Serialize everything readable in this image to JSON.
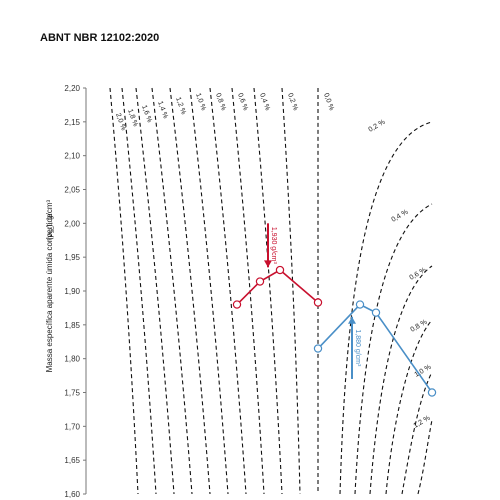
{
  "document": {
    "title": "ABNT NBR 12102:2020"
  },
  "chart_data": {
    "type": "line",
    "title": "",
    "ylabel": "Massa específica aparente úmida convertida   (ρ_sc), g/cm³",
    "ylabel_main": "Massa específica aparente úmida convertida",
    "ylabel_symbol": "(ρ",
    "ylabel_sub": "sc",
    "ylabel_unit": "), g/cm³",
    "ylim": [
      1.6,
      2.2
    ],
    "yticks": [
      "1,60",
      "1,65",
      "1,70",
      "1,75",
      "1,80",
      "1,85",
      "1,90",
      "1,95",
      "2,00",
      "2,05",
      "2,10",
      "2,15",
      "2,20"
    ],
    "grid": false,
    "left_curve_labels": [
      "0,0 %",
      "0,2 %",
      "0,4 %",
      "0,6 %",
      "0,8 %",
      "1,0 %",
      "1,2 %",
      "1,4 %",
      "1,6 %",
      "1,8 %",
      "2,0 %"
    ],
    "right_curve_labels": [
      "0,2 %",
      "0,4 %",
      "0,6 %",
      "0,8 %",
      "1,0 %",
      "1,2 %"
    ],
    "series": [
      {
        "color": "#c8102e",
        "x": [
          1,
          2,
          3,
          4
        ],
        "y": [
          1.88,
          1.914,
          1.931,
          1.883
        ]
      },
      {
        "color": "#4a8fc7",
        "x": [
          5,
          6,
          7,
          8
        ],
        "y": [
          1.815,
          1.88,
          1.868,
          1.75
        ]
      }
    ],
    "annotations": [
      {
        "text": "1,930 g/cm³",
        "color": "#c8102e",
        "y_from": 2.0,
        "y_to": 1.935
      },
      {
        "text": "1,880 g/cm³",
        "color": "#4a8fc7",
        "y_from": 1.77,
        "y_to": 1.862
      }
    ]
  }
}
